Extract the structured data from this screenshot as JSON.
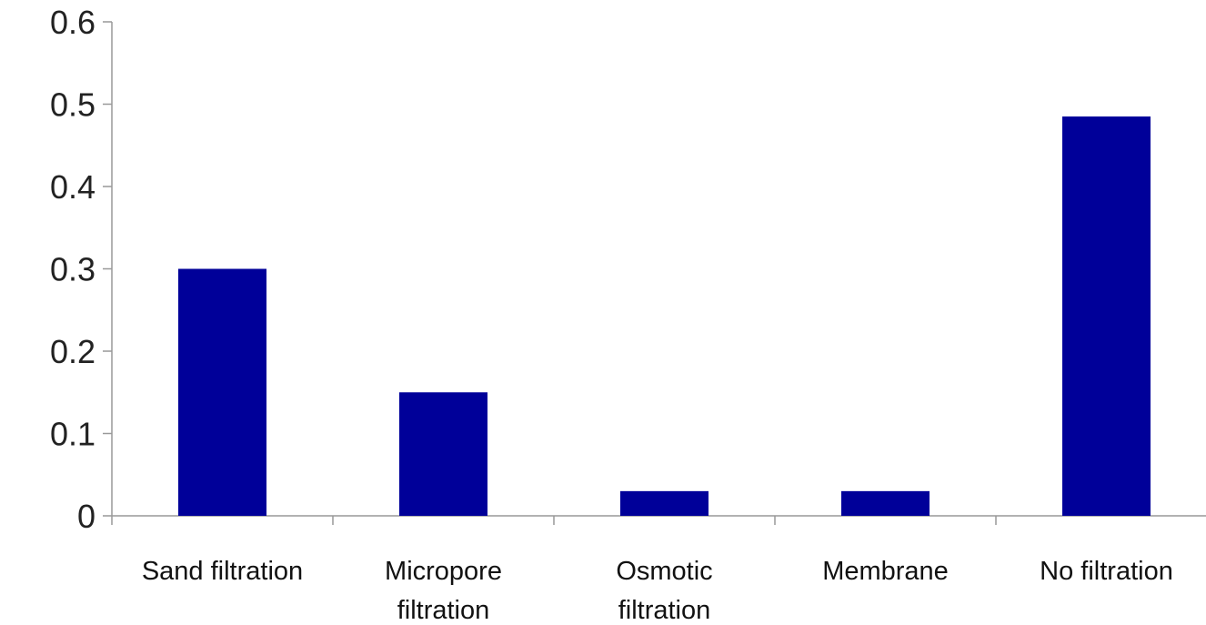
{
  "chart_data": {
    "type": "bar",
    "categories": [
      [
        "Sand filtration"
      ],
      [
        "Micropore",
        "filtration"
      ],
      [
        "Osmotic",
        "filtration"
      ],
      [
        "Membrane"
      ],
      [
        "No filtration"
      ]
    ],
    "values": [
      0.3,
      0.15,
      0.03,
      0.03,
      0.485
    ],
    "ylim": [
      0,
      0.6
    ],
    "yticks": [
      "0",
      "0.1",
      "0.2",
      "0.3",
      "0.4",
      "0.5",
      "0.6"
    ],
    "title": "",
    "xlabel": "",
    "ylabel": "",
    "grid": false,
    "legend": "none",
    "bar_color": "#000099",
    "axis_color": "#999999"
  }
}
